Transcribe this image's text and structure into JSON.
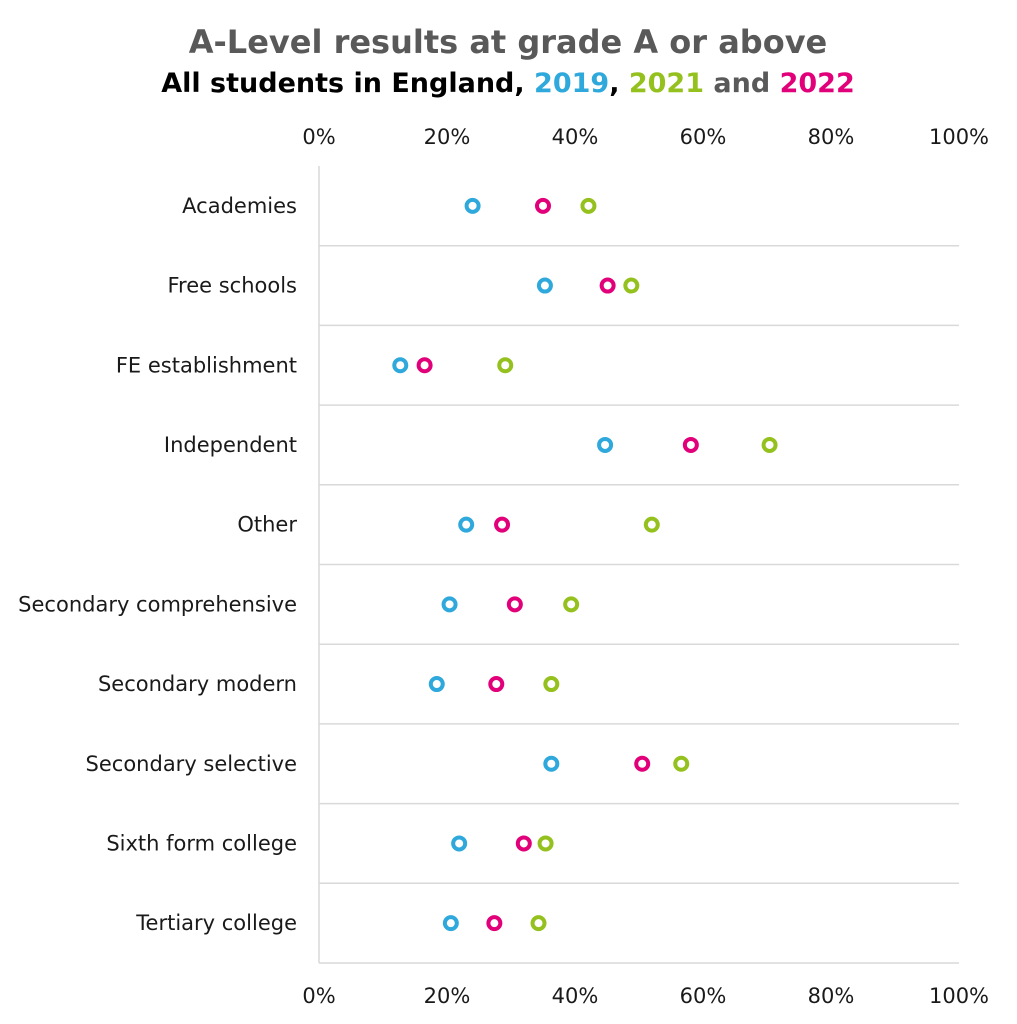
{
  "chart_data": {
    "type": "scatter",
    "orientation": "horizontal-dot-plot",
    "title": "A-Level results at grade A or above",
    "subtitle": {
      "prefix": "All students in England, ",
      "parts": [
        {
          "text": "2019",
          "color": "#2fa8dc"
        },
        {
          "text": ", ",
          "color": "#000000"
        },
        {
          "text": "2021",
          "color": "#95c11f"
        },
        {
          "text": " and ",
          "color": "#595959"
        },
        {
          "text": "2022",
          "color": "#e2007a"
        }
      ]
    },
    "xlim": [
      0,
      100
    ],
    "ticks": [
      "0%",
      "20%",
      "40%",
      "60%",
      "80%",
      "100%"
    ],
    "tick_values": [
      0,
      20,
      40,
      60,
      80,
      100
    ],
    "grid": true,
    "categories": [
      "Academies",
      "Free schools",
      "FE establishment",
      "Independent",
      "Other",
      "Secondary comprehensive",
      "Secondary modern",
      "Secondary selective",
      "Sixth form college",
      "Tertiary college"
    ],
    "series": [
      {
        "color": "#2fa8dc",
        "values": [
          24.0,
          35.3,
          12.7,
          44.7,
          23.0,
          20.4,
          18.4,
          36.3,
          21.9,
          20.6
        ]
      },
      {
        "color": "#95c11f",
        "values": [
          42.1,
          48.8,
          29.1,
          70.4,
          52.0,
          39.4,
          36.3,
          56.6,
          35.4,
          34.3
        ]
      },
      {
        "color": "#e2007a",
        "values": [
          35.0,
          45.1,
          16.5,
          58.1,
          28.6,
          30.6,
          27.7,
          50.5,
          32.0,
          27.4
        ]
      }
    ]
  }
}
